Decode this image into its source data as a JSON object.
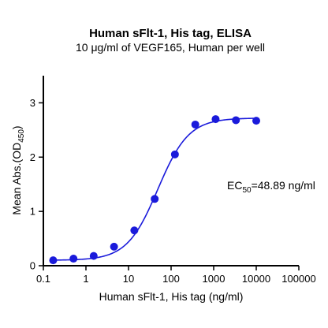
{
  "chart_data": {
    "type": "scatter",
    "title": "Human sFlt-1, His tag, ELISA",
    "subtitle": "10 μg/ml of VEGF165, Human per well",
    "xlabel": "Human sFlt-1, His tag (ng/ml)",
    "ylabel_main": "Mean Abs.(OD",
    "ylabel_sub": "450",
    "ylabel_close": ")",
    "xscale": "log10",
    "xlim": [
      0.1,
      100000
    ],
    "ylim": [
      0,
      3.5
    ],
    "x_ticks": [
      0.1,
      1,
      10,
      100,
      1000,
      10000,
      100000
    ],
    "x_tick_labels": [
      "0.1",
      "1",
      "10",
      "100",
      "1000",
      "10000",
      "100000"
    ],
    "y_ticks": [
      0,
      1,
      2,
      3
    ],
    "y_tick_labels": [
      "0",
      "1",
      "2",
      "3"
    ],
    "grid": false,
    "series": [
      {
        "color": "#1a1adb",
        "x": [
          0.17,
          0.51,
          1.52,
          4.57,
          13.7,
          41.2,
          123,
          370,
          1111,
          3333,
          10000
        ],
        "y": [
          0.1,
          0.13,
          0.18,
          0.35,
          0.65,
          1.23,
          2.05,
          2.6,
          2.7,
          2.68,
          2.67
        ]
      }
    ],
    "fit": {
      "type": "4PL",
      "bottom": 0.1,
      "top": 2.72,
      "ec50": 48.89,
      "hill": 1.2
    },
    "annotation": {
      "prefix": "EC",
      "sub": "50",
      "suffix": "=48.89 ng/ml"
    }
  }
}
